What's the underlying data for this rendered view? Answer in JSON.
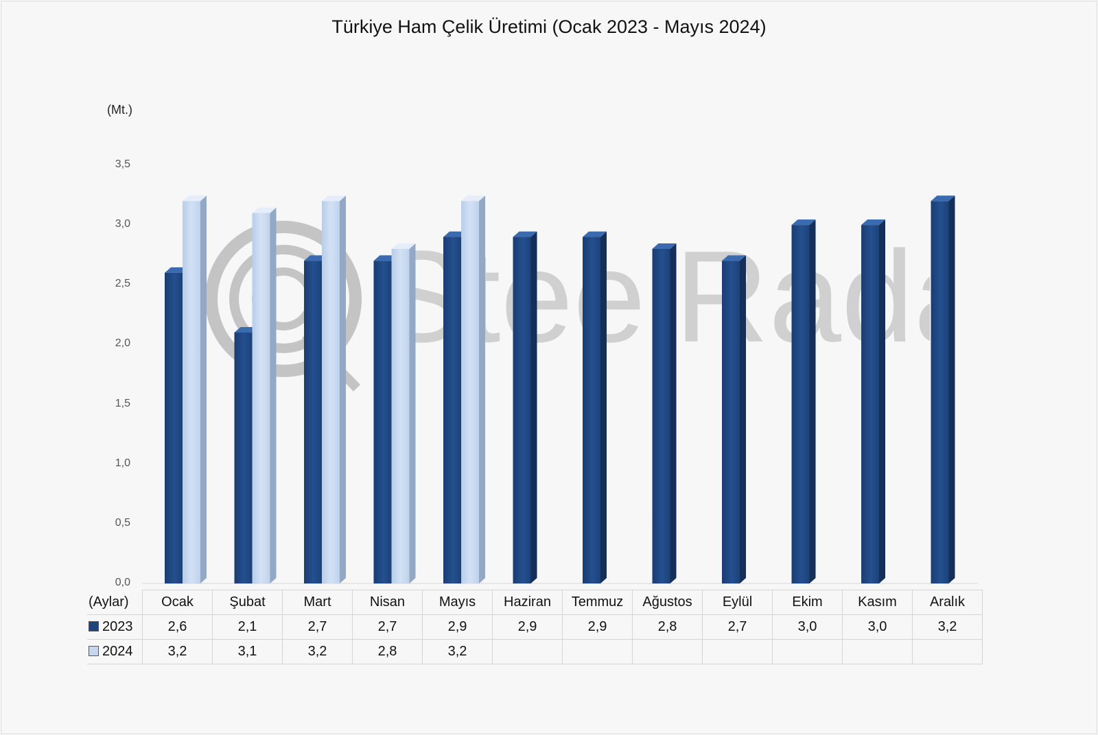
{
  "chart_data": {
    "type": "bar",
    "title": "Türkiye Ham Çelik Üretimi (Ocak 2023 - Mayıs 2024)",
    "ylabel": "(Mt.)",
    "xlabel": "(Aylar)",
    "ylim": [
      0,
      3.5
    ],
    "yticks": [
      "0,0",
      "0,5",
      "1,0",
      "1,5",
      "2,0",
      "2,5",
      "3,0",
      "3,5"
    ],
    "categories": [
      "Ocak",
      "Şubat",
      "Mart",
      "Nisan",
      "Mayıs",
      "Haziran",
      "Temmuz",
      "Ağustos",
      "Eylül",
      "Ekim",
      "Kasım",
      "Aralık"
    ],
    "series": [
      {
        "name": "2023",
        "color": "#1f447c",
        "values": [
          2.6,
          2.1,
          2.7,
          2.7,
          2.9,
          2.9,
          2.9,
          2.8,
          2.7,
          3.0,
          3.0,
          3.2
        ],
        "labels": [
          "2,6",
          "2,1",
          "2,7",
          "2,7",
          "2,9",
          "2,9",
          "2,9",
          "2,8",
          "2,7",
          "3,0",
          "3,0",
          "3,2"
        ]
      },
      {
        "name": "2024",
        "color": "#c5d6ee",
        "values": [
          3.2,
          3.1,
          3.2,
          2.8,
          3.2,
          null,
          null,
          null,
          null,
          null,
          null,
          null
        ],
        "labels": [
          "3,2",
          "3,1",
          "3,2",
          "2,8",
          "3,2",
          "",
          "",
          "",
          "",
          "",
          "",
          ""
        ]
      }
    ],
    "grid": false,
    "legend": "data-table"
  },
  "watermark": {
    "text": "SteelRadar"
  }
}
